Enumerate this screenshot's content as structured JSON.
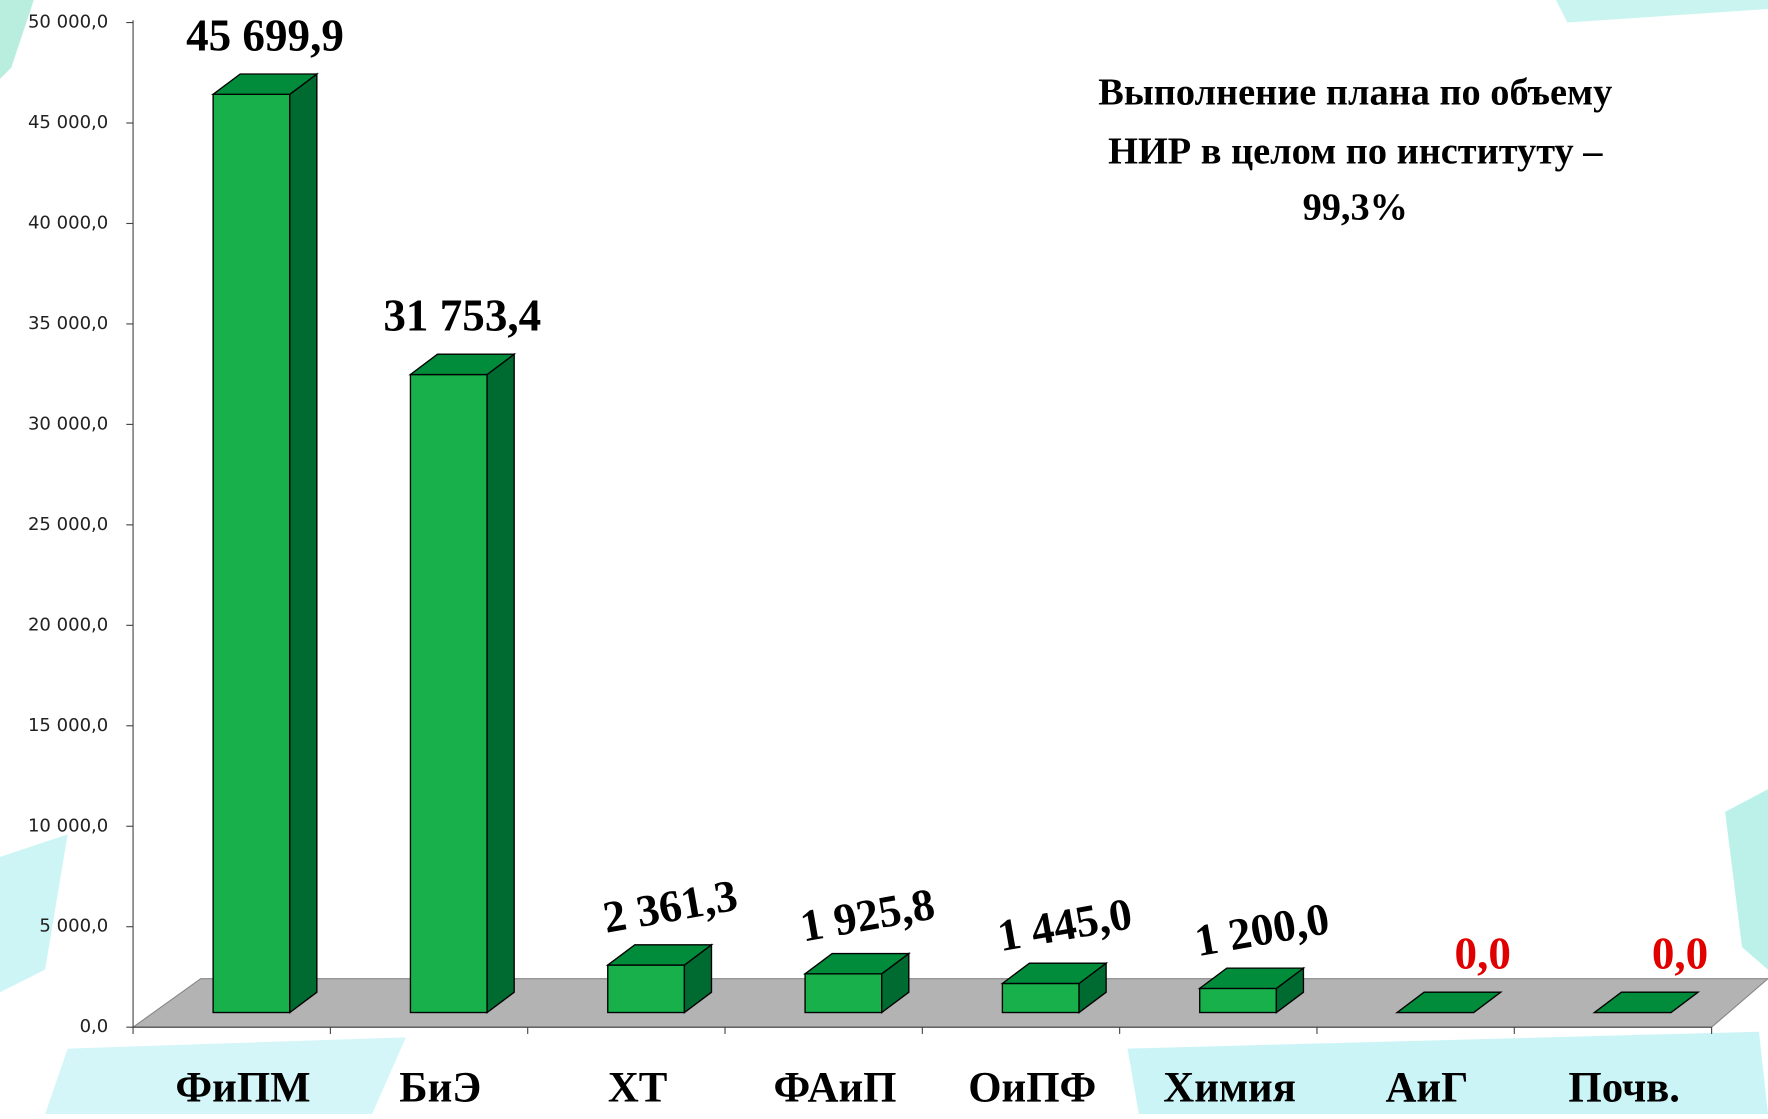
{
  "chart_data": {
    "type": "bar3d",
    "annotation": [
      "Выполнение плана по объему",
      "НИР в целом по институту –",
      "99,3%"
    ],
    "categories": [
      "ФиПМ",
      "БиЭ",
      "ХТ",
      "ФАиП",
      "ОиПФ",
      "Химия",
      "АиГ",
      "Почв."
    ],
    "values": [
      45699.9,
      31753.4,
      2361.3,
      1925.8,
      1445.0,
      1200.0,
      0.0,
      0.0
    ],
    "value_labels": [
      "45 699,9",
      "31 753,4",
      "2 361,3",
      "1 925,8",
      "1 445,0",
      "1 200,0",
      "0,0",
      "0,0"
    ],
    "color": "#17b04a",
    "side_color": "#006b30",
    "top_color": "#008c3a",
    "zero_label_color": "#e00000",
    "ylim": [
      0,
      50000
    ],
    "yticks": [
      {
        "value": 0,
        "label": "0,0"
      },
      {
        "value": 5000,
        "label": "5 000,0"
      },
      {
        "value": 10000,
        "label": "10 000,0"
      },
      {
        "value": 15000,
        "label": "15 000,0"
      },
      {
        "value": 20000,
        "label": "20 000,0"
      },
      {
        "value": 25000,
        "label": "25 000,0"
      },
      {
        "value": 30000,
        "label": "30 000,0"
      },
      {
        "value": 35000,
        "label": "35 000,0"
      },
      {
        "value": 40000,
        "label": "40 000,0"
      },
      {
        "value": 45000,
        "label": "45 000,0"
      },
      {
        "value": 50000,
        "label": "50 000,0"
      }
    ]
  }
}
